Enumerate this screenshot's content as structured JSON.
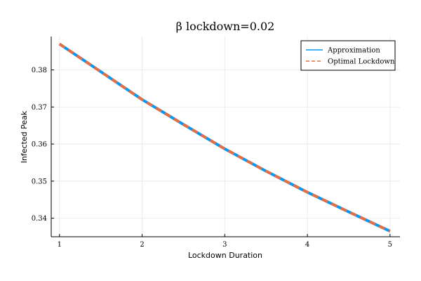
{
  "chart_data": {
    "type": "line",
    "title": "β lockdown=0.02",
    "xlabel": "Lockdown Duration",
    "ylabel": "Infected Peak",
    "xlim": [
      0.9,
      5.12
    ],
    "ylim": [
      0.335,
      0.389
    ],
    "xticks": [
      1,
      2,
      3,
      4,
      5
    ],
    "yticks": [
      0.34,
      0.35,
      0.36,
      0.37,
      0.38
    ],
    "grid": true,
    "legend_position": "top-right",
    "x": [
      1,
      1.5,
      2,
      2.5,
      3,
      3.5,
      4,
      4.5,
      5
    ],
    "series": [
      {
        "name": "Approximation",
        "color": "#009af9",
        "style": "solid",
        "values": [
          0.387,
          0.3795,
          0.372,
          0.3653,
          0.3587,
          0.3527,
          0.347,
          0.3417,
          0.3365
        ]
      },
      {
        "name": "Optimal Lockdown",
        "color": "#e26f46",
        "style": "dashed",
        "values": [
          0.387,
          0.3795,
          0.372,
          0.3653,
          0.3587,
          0.3527,
          0.347,
          0.3417,
          0.3365
        ]
      }
    ]
  }
}
